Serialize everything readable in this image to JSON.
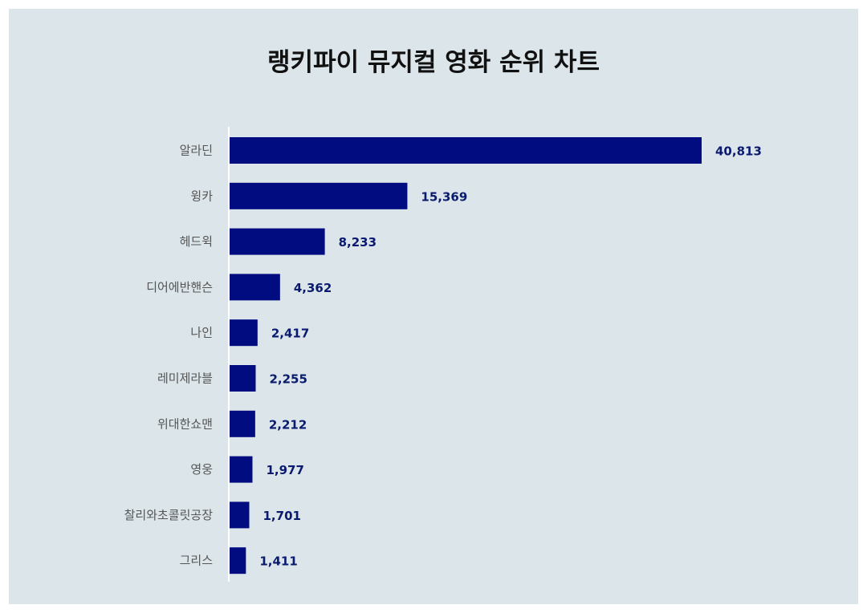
{
  "chart_data": {
    "type": "bar",
    "orientation": "horizontal",
    "title": "랭키파이 뮤지컬 영화 순위 차트",
    "categories": [
      "알라딘",
      "윙카",
      "헤드윅",
      "디어에반핸슨",
      "나인",
      "레미제라블",
      "위대한쇼맨",
      "영웅",
      "찰리와초콜릿공장",
      "그리스"
    ],
    "values": [
      40813,
      15369,
      8233,
      4362,
      2417,
      2255,
      2212,
      1977,
      1701,
      1411
    ],
    "value_labels": [
      "40,813",
      "15,369",
      "8,233",
      "4,362",
      "2,417",
      "2,255",
      "2,212",
      "1,977",
      "1,701",
      "1,411"
    ],
    "xlim": [
      0,
      45000
    ],
    "grid": false,
    "legend": "none",
    "colors": {
      "bar": "#000c7f",
      "value_label": "#0a1a6e",
      "category_label": "#555555",
      "background": "#dce6ea",
      "axis": "#ffffff"
    }
  }
}
